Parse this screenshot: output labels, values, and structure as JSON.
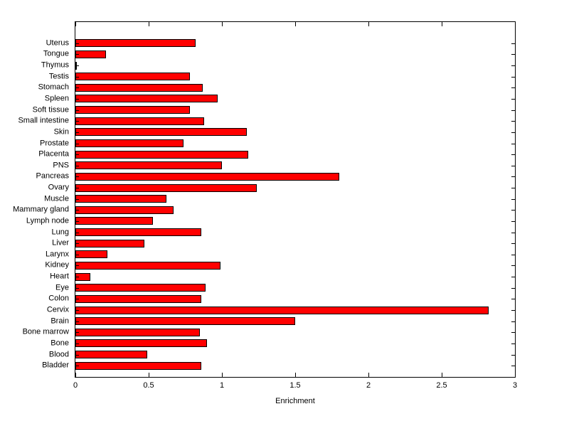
{
  "chart_data": {
    "type": "bar",
    "orientation": "horizontal",
    "xlabel": "Enrichment",
    "xlim": [
      0,
      3
    ],
    "xticks": [
      0,
      0.5,
      1,
      1.5,
      2,
      2.5,
      3
    ],
    "xtick_labels": [
      "0",
      "0.5",
      "1",
      "1.5",
      "2",
      "2.5",
      "3"
    ],
    "bar_color": "#ff0000",
    "bar_edge_color": "#000000",
    "grid": false,
    "categories": [
      "Uterus",
      "Tongue",
      "Thymus",
      "Testis",
      "Stomach",
      "Spleen",
      "Soft tissue",
      "Small intestine",
      "Skin",
      "Prostate",
      "Placenta",
      "PNS",
      "Pancreas",
      "Ovary",
      "Muscle",
      "Mammary gland",
      "Lymph node",
      "Lung",
      "Liver",
      "Larynx",
      "Kidney",
      "Heart",
      "Eye",
      "Colon",
      "Cervix",
      "Brain",
      "Bone marrow",
      "Bone",
      "Blood",
      "Bladder"
    ],
    "values": [
      0.82,
      0.21,
      0.01,
      0.78,
      0.87,
      0.97,
      0.78,
      0.88,
      1.17,
      0.74,
      1.18,
      1.0,
      1.8,
      1.24,
      0.62,
      0.67,
      0.53,
      0.86,
      0.47,
      0.22,
      0.99,
      0.1,
      0.89,
      0.86,
      2.82,
      1.5,
      0.85,
      0.9,
      0.49,
      0.86
    ]
  }
}
